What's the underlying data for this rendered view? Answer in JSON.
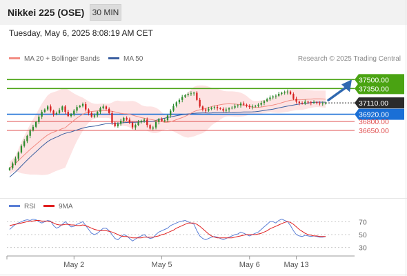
{
  "header": {
    "title": "Nikkei 225 (OSE)",
    "timeframe": "30 MIN",
    "datetime": "Tuesday, May 6, 2025 8:08:19 AM CET",
    "credit": "Research © 2025 Trading Central"
  },
  "legend": {
    "main": [
      {
        "label": "MA 20 + Bollinger Bands",
        "color": "#f28b82"
      },
      {
        "label": "MA 50",
        "color": "#3a5fa0"
      }
    ],
    "rsi": [
      {
        "label": "RSI",
        "color": "#5b7fd6"
      },
      {
        "label": "9MA",
        "color": "#e02020"
      }
    ]
  },
  "colors": {
    "up": "#2e8b2e",
    "down": "#d62020",
    "target_green": "#4aa312",
    "support_blue": "#1a6fd6",
    "red_level": "#e05050",
    "current_dark": "#2b2b2b",
    "band_fill": "#fde3e3",
    "arrow": "#2f68b0"
  },
  "chart_data": [
    {
      "type": "candlestick",
      "series": [
        {
          "name": "MA 20 + Bollinger Bands"
        },
        {
          "name": "MA 50"
        }
      ],
      "ylim": [
        35600,
        37700
      ],
      "levels": [
        {
          "value": 37500,
          "label": "37500.00",
          "style": "target"
        },
        {
          "value": 37350,
          "label": "37350.00",
          "style": "target"
        },
        {
          "value": 37110,
          "label": "37110.00",
          "style": "current"
        },
        {
          "value": 36920,
          "label": "36920.00",
          "style": "support"
        },
        {
          "value": 36800,
          "label": "36800.00",
          "style": "red"
        },
        {
          "value": 36650,
          "label": "36650.00",
          "style": "red"
        }
      ],
      "arrow": {
        "from": 37110,
        "to": 37500
      },
      "closes": [
        36020,
        36100,
        36180,
        36280,
        36390,
        36470,
        36560,
        36650,
        36710,
        36790,
        36880,
        36960,
        37000,
        37050,
        36980,
        36920,
        36940,
        36990,
        37050,
        36960,
        36890,
        36920,
        36980,
        37040,
        37060,
        37090,
        37000,
        36940,
        36880,
        36900,
        36960,
        37020,
        37050,
        37010,
        36940,
        36780,
        36720,
        36760,
        36810,
        36860,
        36830,
        36780,
        36700,
        36740,
        36790,
        36810,
        36830,
        36740,
        36680,
        36700,
        36790,
        36840,
        36810,
        36820,
        36900,
        36980,
        37060,
        37120,
        37160,
        37210,
        37240,
        37260,
        37270,
        37280,
        37160,
        37050,
        37000,
        36980,
        37010,
        37030,
        37040,
        37020,
        37010,
        36980,
        37000,
        37020,
        37030,
        37060,
        37070,
        37100,
        37080,
        37060,
        37040,
        37050,
        37060,
        37080,
        37110,
        37140,
        37170,
        37200,
        37220,
        37230,
        37260,
        37280,
        37290,
        37300,
        37260,
        37180,
        37130,
        37110,
        37100,
        37130,
        37120,
        37110,
        37120,
        37110,
        37100,
        37100,
        37110
      ]
    },
    {
      "type": "line",
      "series": [
        {
          "name": "RSI"
        },
        {
          "name": "9MA"
        }
      ],
      "ylim": [
        20,
        80
      ],
      "yticks": [
        70,
        50,
        30
      ],
      "rsi": [
        58,
        62,
        66,
        68,
        70,
        72,
        73,
        72,
        74,
        73,
        70,
        68,
        70,
        72,
        71,
        64,
        60,
        62,
        66,
        70,
        66,
        62,
        63,
        66,
        68,
        70,
        64,
        58,
        52,
        50,
        52,
        56,
        60,
        60,
        56,
        50,
        44,
        42,
        46,
        50,
        48,
        44,
        40,
        43,
        46,
        48,
        50,
        46,
        44,
        45,
        50,
        54,
        56,
        58,
        60,
        64,
        66,
        68,
        70,
        71,
        72,
        70,
        68,
        66,
        56,
        48,
        44,
        42,
        44,
        46,
        47,
        46,
        44,
        42,
        44,
        46,
        48,
        50,
        51,
        54,
        52,
        50,
        48,
        50,
        52,
        54,
        58,
        62,
        66,
        70,
        70,
        68,
        72,
        74,
        72,
        70,
        64,
        56,
        50,
        48,
        47,
        49,
        48,
        47,
        48,
        47,
        46,
        46,
        47
      ],
      "ma9": [
        64,
        65,
        66,
        67,
        68,
        69,
        70,
        71,
        71,
        72,
        72,
        71,
        71,
        71,
        70,
        68,
        66,
        65,
        65,
        66,
        66,
        65,
        65,
        64,
        64,
        65,
        64,
        62,
        60,
        58,
        57,
        56,
        56,
        56,
        55,
        54,
        52,
        50,
        48,
        47,
        47,
        46,
        45,
        45,
        45,
        45,
        46,
        46,
        46,
        46,
        47,
        48,
        50,
        51,
        53,
        55,
        57,
        60,
        62,
        64,
        66,
        68,
        68,
        68,
        66,
        63,
        59,
        55,
        51,
        48,
        46,
        45,
        45,
        45,
        45,
        45,
        45,
        46,
        47,
        48,
        49,
        50,
        50,
        50,
        50,
        51,
        52,
        54,
        56,
        59,
        61,
        63,
        65,
        67,
        69,
        70,
        69,
        66,
        62,
        58,
        55,
        52,
        50,
        49,
        48,
        48,
        47,
        47,
        47
      ]
    }
  ],
  "xaxis": {
    "ticks": [
      {
        "label": "May 2",
        "index": 22
      },
      {
        "label": "May 5",
        "index": 52
      },
      {
        "label": "May 6",
        "index": 82
      },
      {
        "label": "May 13",
        "index": 98
      }
    ]
  }
}
